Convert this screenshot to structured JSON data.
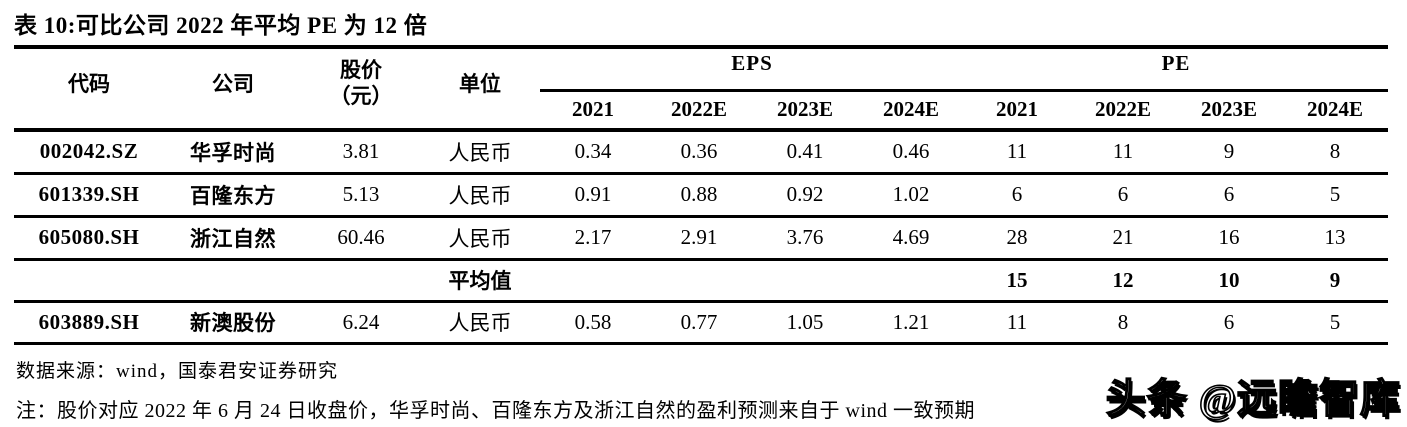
{
  "title": "表 10:可比公司 2022 年平均 PE 为 12 倍",
  "table": {
    "headers": {
      "code": "代码",
      "company": "公司",
      "price_line1": "股价",
      "price_line2": "（元）",
      "unit": "单位",
      "eps_group": "EPS",
      "pe_group": "PE",
      "years": [
        "2021",
        "2022E",
        "2023E",
        "2024E"
      ]
    },
    "rows": [
      {
        "code": "002042.SZ",
        "company": "华孚时尚",
        "price": "3.81",
        "unit": "人民币",
        "eps": [
          "0.34",
          "0.36",
          "0.41",
          "0.46"
        ],
        "pe": [
          "11",
          "11",
          "9",
          "8"
        ]
      },
      {
        "code": "601339.SH",
        "company": "百隆东方",
        "price": "5.13",
        "unit": "人民币",
        "eps": [
          "0.91",
          "0.88",
          "0.92",
          "1.02"
        ],
        "pe": [
          "6",
          "6",
          "6",
          "5"
        ]
      },
      {
        "code": "605080.SH",
        "company": "浙江自然",
        "price": "60.46",
        "unit": "人民币",
        "eps": [
          "2.17",
          "2.91",
          "3.76",
          "4.69"
        ],
        "pe": [
          "28",
          "21",
          "16",
          "13"
        ]
      }
    ],
    "average_row": {
      "label": "平均值",
      "pe": [
        "15",
        "12",
        "10",
        "9"
      ]
    },
    "subject_row": {
      "code": "603889.SH",
      "company": "新澳股份",
      "price": "6.24",
      "unit": "人民币",
      "eps": [
        "0.58",
        "0.77",
        "1.05",
        "1.21"
      ],
      "pe": [
        "11",
        "8",
        "6",
        "5"
      ]
    }
  },
  "footer": {
    "source": "数据来源：wind，国泰君安证券研究",
    "note": "注：股价对应 2022 年 6 月 24 日收盘价，华孚时尚、百隆东方及浙江自然的盈利预测来自于 wind 一致预期",
    "watermark": "头条 @远瞻智库"
  },
  "colors": {
    "text": "#000000",
    "background": "#ffffff",
    "rule": "#000000"
  }
}
